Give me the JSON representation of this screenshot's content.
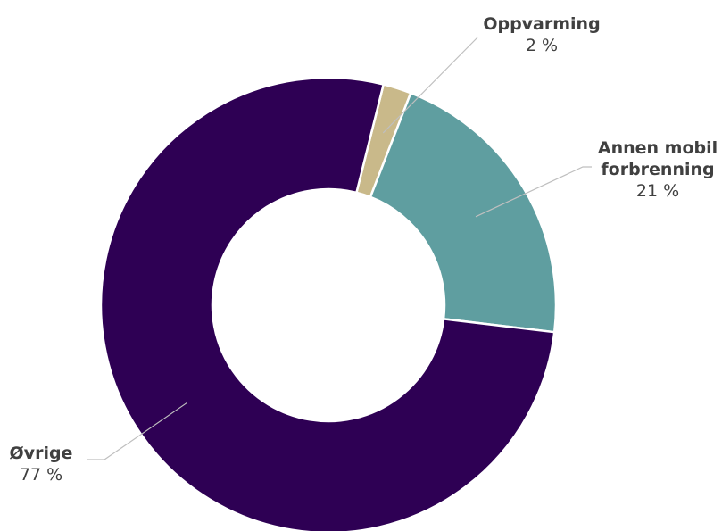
{
  "chart_data": {
    "type": "pie",
    "variant": "donut",
    "title": "",
    "slices": [
      {
        "label": "Oppvarming",
        "value_label": "2 %",
        "value": 2,
        "color": "#c9b98a"
      },
      {
        "label": "Annen mobil\nforbrenning",
        "value_label": "21 %",
        "value": 21,
        "color": "#5f9ea0"
      },
      {
        "label": "Øvrige",
        "value_label": "77 %",
        "value": 77,
        "color": "#2e0054"
      }
    ],
    "start_angle_deg": 14,
    "direction": "clockwise",
    "legend": "none"
  }
}
